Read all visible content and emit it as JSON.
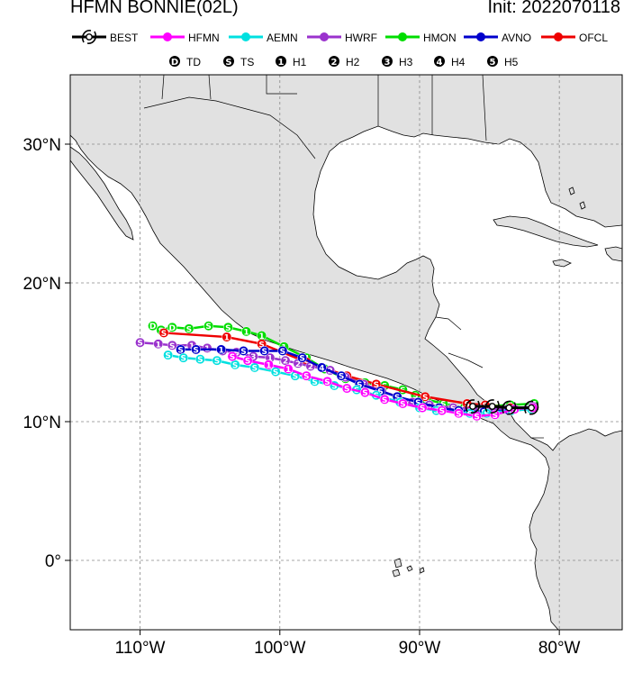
{
  "title": "HFMN BONNIE(02L)",
  "init": "Init: 2022070118",
  "models": [
    {
      "name": "BEST",
      "color": "#000000"
    },
    {
      "name": "HFMN",
      "color": "#ff00ff"
    },
    {
      "name": "AEMN",
      "color": "#00e0e0"
    },
    {
      "name": "HWRF",
      "color": "#9a32cd"
    },
    {
      "name": "HMON",
      "color": "#00dd00"
    },
    {
      "name": "AVNO",
      "color": "#0000cc"
    },
    {
      "name": "OFCL",
      "color": "#ee0000"
    }
  ],
  "intensity_legend": [
    {
      "symbol": "D",
      "label": "TD"
    },
    {
      "symbol": "S",
      "label": "TS"
    },
    {
      "symbol": "1",
      "label": "H1"
    },
    {
      "symbol": "2",
      "label": "H2"
    },
    {
      "symbol": "3",
      "label": "H3"
    },
    {
      "symbol": "4",
      "label": "H4"
    },
    {
      "symbol": "5",
      "label": "H5"
    }
  ],
  "lat_labels": [
    "0°",
    "10°N",
    "20°N",
    "30°N"
  ],
  "lon_labels": [
    "110°W",
    "100°W",
    "90°W",
    "80°W"
  ],
  "chart_data": {
    "type": "map-tracks",
    "lon_range": [
      -115,
      -75.5
    ],
    "lat_range": [
      -5,
      35
    ],
    "grid": true,
    "tracks": [
      {
        "name": "HMON",
        "points": [
          [
            -81.8,
            11.3,
            "S"
          ],
          [
            -83.5,
            11.2,
            "S"
          ],
          [
            -85.3,
            11.1,
            "S"
          ],
          [
            -86.8,
            11.0,
            "S"
          ],
          [
            -88.3,
            11.3,
            "S"
          ],
          [
            -89.5,
            11.6,
            "S"
          ],
          [
            -90.3,
            11.9,
            "S"
          ],
          [
            -91.2,
            12.3,
            "S"
          ],
          [
            -92.5,
            12.6,
            "S"
          ],
          [
            -93.9,
            12.8,
            "S"
          ],
          [
            -95.3,
            13.1,
            "S"
          ],
          [
            -96.8,
            13.8,
            "S"
          ],
          [
            -98.1,
            14.6,
            "4"
          ],
          [
            -99.7,
            15.4,
            "1"
          ],
          [
            -101.3,
            16.2,
            "1"
          ],
          [
            -102.4,
            16.5,
            "1"
          ],
          [
            -103.7,
            16.8,
            "S"
          ],
          [
            -105.1,
            16.9,
            "S"
          ],
          [
            -106.5,
            16.7,
            "S"
          ],
          [
            -107.7,
            16.8,
            "D"
          ],
          [
            -108.5,
            16.6,
            "S"
          ],
          [
            -109.1,
            16.9,
            "D"
          ]
        ]
      },
      {
        "name": "OFCL",
        "points": [
          [
            -81.8,
            11.0,
            "S"
          ],
          [
            -83.5,
            11.0,
            "S"
          ],
          [
            -85.3,
            11.2,
            "S"
          ],
          [
            -86.6,
            11.3,
            "S"
          ],
          [
            -89.6,
            11.8,
            "S"
          ],
          [
            -93.1,
            12.7,
            "S"
          ],
          [
            -95.2,
            13.3,
            "S"
          ],
          [
            -98.1,
            14.3,
            "S"
          ],
          [
            -101.3,
            15.6,
            "S"
          ],
          [
            -103.8,
            16.1,
            "1"
          ],
          [
            -108.3,
            16.4,
            "S"
          ]
        ]
      },
      {
        "name": "HWRF",
        "points": [
          [
            -81.9,
            11.1,
            "S"
          ],
          [
            -83.7,
            10.9,
            "S"
          ],
          [
            -85.7,
            10.9,
            "S"
          ],
          [
            -87.6,
            11.0,
            "S"
          ],
          [
            -89.3,
            11.2,
            "S"
          ],
          [
            -90.5,
            11.4,
            "S"
          ],
          [
            -91.6,
            11.8,
            "S"
          ],
          [
            -92.7,
            12.2,
            "S"
          ],
          [
            -94.0,
            12.7,
            "S"
          ],
          [
            -95.3,
            13.2,
            "S"
          ],
          [
            -96.4,
            13.7,
            "2"
          ],
          [
            -97.8,
            14.0,
            "2"
          ],
          [
            -98.7,
            14.2,
            "2"
          ],
          [
            -99.6,
            14.4,
            "2"
          ],
          [
            -100.7,
            14.6,
            "1"
          ],
          [
            -101.9,
            14.7,
            "3"
          ],
          [
            -103.1,
            15.0,
            "S"
          ],
          [
            -104.1,
            15.1,
            "S"
          ],
          [
            -105.2,
            15.3,
            "1"
          ],
          [
            -106.3,
            15.5,
            "1"
          ],
          [
            -107.7,
            15.5,
            "S"
          ],
          [
            -108.7,
            15.6,
            "1"
          ],
          [
            -110.0,
            15.7,
            "S"
          ]
        ]
      },
      {
        "name": "AVNO",
        "points": [
          [
            -82.0,
            10.9,
            "S"
          ],
          [
            -83.6,
            10.8,
            "S"
          ],
          [
            -85.4,
            10.7,
            "S"
          ],
          [
            -87.2,
            10.8,
            "S"
          ],
          [
            -88.6,
            11.0,
            "S"
          ],
          [
            -90.1,
            11.4,
            "S"
          ],
          [
            -91.6,
            11.8,
            "S"
          ],
          [
            -92.8,
            12.2,
            "S"
          ],
          [
            -94.3,
            12.7,
            "S"
          ],
          [
            -95.6,
            13.3,
            "S"
          ],
          [
            -97.0,
            13.9,
            "4"
          ],
          [
            -98.4,
            14.6,
            "S"
          ],
          [
            -99.8,
            15.1,
            "S"
          ],
          [
            -101.1,
            15.1,
            "S"
          ],
          [
            -102.6,
            15.1,
            "S"
          ],
          [
            -104.2,
            15.2,
            "1"
          ],
          [
            -106.0,
            15.2,
            "S"
          ],
          [
            -107.1,
            15.2,
            "S"
          ]
        ]
      },
      {
        "name": "AEMN",
        "points": [
          [
            -82.0,
            10.9,
            "S"
          ],
          [
            -83.4,
            10.8,
            "S"
          ],
          [
            -85.2,
            10.6,
            "S"
          ],
          [
            -86.4,
            10.6,
            "S"
          ],
          [
            -88.8,
            10.8,
            "S"
          ],
          [
            -90.0,
            11.0,
            "S"
          ],
          [
            -91.4,
            11.4,
            "S"
          ],
          [
            -93.1,
            11.9,
            "S"
          ],
          [
            -94.5,
            12.3,
            "S"
          ],
          [
            -96.1,
            12.6,
            "S"
          ],
          [
            -97.5,
            12.9,
            "S"
          ],
          [
            -98.9,
            13.3,
            "S"
          ],
          [
            -100.3,
            13.6,
            "S"
          ],
          [
            -101.8,
            13.9,
            "S"
          ],
          [
            -103.2,
            14.1,
            "S"
          ],
          [
            -104.5,
            14.4,
            "S"
          ],
          [
            -105.7,
            14.5,
            "S"
          ],
          [
            -106.9,
            14.6,
            "S"
          ],
          [
            -108.0,
            14.8,
            "S"
          ]
        ]
      },
      {
        "name": "HFMN",
        "points": [
          [
            -81.9,
            11.0,
            "S"
          ],
          [
            -83.2,
            10.9,
            "S"
          ],
          [
            -84.6,
            10.5,
            "S"
          ],
          [
            -85.9,
            10.4,
            "S"
          ],
          [
            -87.2,
            10.6,
            "S"
          ],
          [
            -88.4,
            10.8,
            "S"
          ],
          [
            -89.8,
            11.0,
            "S"
          ],
          [
            -91.2,
            11.3,
            "S"
          ],
          [
            -92.5,
            11.6,
            "S"
          ],
          [
            -93.9,
            12.1,
            "S"
          ],
          [
            -95.2,
            12.4,
            "S"
          ],
          [
            -96.6,
            12.9,
            "S"
          ],
          [
            -98.1,
            13.3,
            "S"
          ],
          [
            -99.4,
            13.8,
            "1"
          ],
          [
            -100.8,
            14.1,
            "1"
          ],
          [
            -102.3,
            14.4,
            "S"
          ],
          [
            -103.4,
            14.7,
            "S"
          ]
        ]
      },
      {
        "name": "BEST",
        "points": [
          [
            -82.0,
            11.0,
            "S"
          ],
          [
            -83.6,
            11.0,
            "S"
          ],
          [
            -84.8,
            11.1,
            "S"
          ],
          [
            -86.2,
            11.1,
            "S"
          ]
        ]
      }
    ]
  }
}
